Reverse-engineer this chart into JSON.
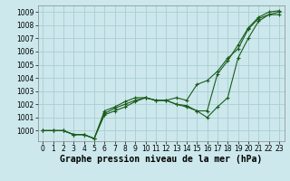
{
  "xlabel": "Graphe pression niveau de la mer (hPa)",
  "ylabel": "",
  "bg_color": "#cce8ec",
  "grid_color": "#aacdd4",
  "line_color": "#1a5c1a",
  "xlim": [
    -0.5,
    23.5
  ],
  "ylim": [
    999.2,
    1009.5
  ],
  "yticks": [
    1000,
    1001,
    1002,
    1003,
    1004,
    1005,
    1006,
    1007,
    1008,
    1009
  ],
  "xticks": [
    0,
    1,
    2,
    3,
    4,
    5,
    6,
    7,
    8,
    9,
    10,
    11,
    12,
    13,
    14,
    15,
    16,
    17,
    18,
    19,
    20,
    21,
    22,
    23
  ],
  "series": [
    [
      1000.0,
      1000.0,
      1000.0,
      999.7,
      999.7,
      999.4,
      1001.5,
      1001.8,
      1002.2,
      1002.5,
      1002.5,
      1002.3,
      1002.3,
      1002.5,
      1002.3,
      1003.5,
      1003.8,
      1004.5,
      1005.5,
      1006.2,
      1007.7,
      1008.5,
      1008.8,
      1008.8
    ],
    [
      1000.0,
      1000.0,
      1000.0,
      999.7,
      999.7,
      999.4,
      1001.3,
      1001.7,
      1002.0,
      1002.3,
      1002.5,
      1002.3,
      1002.3,
      1002.0,
      1001.8,
      1001.5,
      1001.5,
      1004.3,
      1005.3,
      1006.5,
      1007.8,
      1008.6,
      1009.0,
      1009.1
    ],
    [
      1000.0,
      1000.0,
      1000.0,
      999.7,
      999.7,
      999.4,
      1001.2,
      1001.5,
      1001.8,
      1002.2,
      1002.5,
      1002.3,
      1002.3,
      1002.0,
      1001.9,
      1001.5,
      1001.0,
      1001.8,
      1002.5,
      1005.5,
      1007.0,
      1008.3,
      1008.8,
      1009.0
    ]
  ],
  "marker": "+",
  "markersize": 3,
  "linewidth": 0.8,
  "xlabel_fontsize": 7,
  "tick_fontsize": 5.5
}
